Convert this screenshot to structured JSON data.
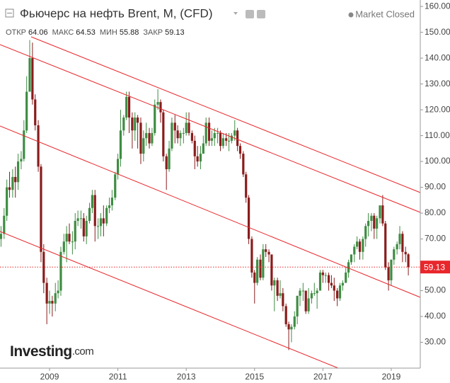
{
  "chart_data": {
    "type": "candlestick",
    "title": "Фьючерс на нефть Brent, M, (CFD)",
    "status": "Market Closed",
    "ohlc_header": [
      {
        "label": "ОТКР",
        "value": 64.06
      },
      {
        "label": "МАКС",
        "value": 64.53
      },
      {
        "label": "МИН",
        "value": 55.88
      },
      {
        "label": "ЗАКР",
        "value": 59.13
      }
    ],
    "logo": {
      "name": "Investing",
      "suffix": ".com"
    },
    "last_price": 59.13,
    "up_color": "#3f8d43",
    "down_color": "#8a1c1c",
    "line_color": "#e8262b",
    "xlim": [
      2007.55,
      2019.85
    ],
    "xticks": [
      2009,
      2011,
      2013,
      2015,
      2017,
      2019
    ],
    "ylim": [
      20,
      162.5
    ],
    "yticks": [
      {
        "value": 30,
        "label": "30.00"
      },
      {
        "value": 40,
        "label": "40.00"
      },
      {
        "value": 50,
        "label": "50.00"
      },
      {
        "value": 60,
        "label": "60.00"
      },
      {
        "value": 70,
        "label": "70.00"
      },
      {
        "value": 80,
        "label": "80.00"
      },
      {
        "value": 90,
        "label": "90.00"
      },
      {
        "value": 100,
        "label": "100.00"
      },
      {
        "value": 110,
        "label": "110.00"
      },
      {
        "value": 120,
        "label": "120.00"
      },
      {
        "value": 130,
        "label": "130.00"
      },
      {
        "value": 140,
        "label": "140.00"
      },
      {
        "value": 150,
        "label": "150.00"
      },
      {
        "value": 160,
        "label": "160.00"
      }
    ],
    "x": [
      2007.58,
      2007.67,
      2007.75,
      2007.83,
      2007.92,
      2008.0,
      2008.08,
      2008.17,
      2008.25,
      2008.33,
      2008.42,
      2008.5,
      2008.58,
      2008.67,
      2008.75,
      2008.83,
      2008.92,
      2009.0,
      2009.08,
      2009.17,
      2009.25,
      2009.33,
      2009.42,
      2009.5,
      2009.58,
      2009.67,
      2009.75,
      2009.83,
      2009.92,
      2010.0,
      2010.08,
      2010.17,
      2010.25,
      2010.33,
      2010.42,
      2010.5,
      2010.58,
      2010.67,
      2010.75,
      2010.83,
      2010.92,
      2011.0,
      2011.08,
      2011.17,
      2011.25,
      2011.33,
      2011.42,
      2011.5,
      2011.58,
      2011.67,
      2011.75,
      2011.83,
      2011.92,
      2012.0,
      2012.08,
      2012.17,
      2012.25,
      2012.33,
      2012.42,
      2012.5,
      2012.58,
      2012.67,
      2012.75,
      2012.83,
      2012.92,
      2013.0,
      2013.08,
      2013.17,
      2013.25,
      2013.33,
      2013.42,
      2013.5,
      2013.58,
      2013.67,
      2013.75,
      2013.83,
      2013.92,
      2014.0,
      2014.08,
      2014.17,
      2014.25,
      2014.33,
      2014.42,
      2014.5,
      2014.58,
      2014.67,
      2014.75,
      2014.83,
      2014.92,
      2015.0,
      2015.08,
      2015.17,
      2015.25,
      2015.33,
      2015.42,
      2015.5,
      2015.58,
      2015.67,
      2015.75,
      2015.83,
      2015.92,
      2016.0,
      2016.08,
      2016.17,
      2016.25,
      2016.33,
      2016.42,
      2016.5,
      2016.58,
      2016.67,
      2016.75,
      2016.83,
      2016.92,
      2017.0,
      2017.08,
      2017.17,
      2017.25,
      2017.33,
      2017.42,
      2017.5,
      2017.58,
      2017.67,
      2017.75,
      2017.83,
      2017.92,
      2018.0,
      2018.08,
      2018.17,
      2018.25,
      2018.33,
      2018.42,
      2018.5,
      2018.58,
      2018.67,
      2018.75,
      2018.83,
      2018.92,
      2019.0,
      2019.08,
      2019.17,
      2019.25,
      2019.33,
      2019.42,
      2019.5
    ],
    "open": [
      70,
      72,
      79,
      90,
      89,
      94,
      92,
      100,
      101,
      112,
      127,
      140,
      124,
      114,
      98,
      65,
      53,
      45,
      46,
      45,
      49,
      50,
      65,
      69,
      72,
      69,
      69,
      77,
      78,
      78,
      71,
      77,
      82,
      87,
      75,
      75,
      78,
      76,
      82,
      83,
      86,
      95,
      101,
      112,
      117,
      125,
      117,
      112,
      117,
      115,
      103,
      109,
      111,
      107,
      111,
      122,
      123,
      119,
      102,
      97,
      105,
      115,
      112,
      109,
      111,
      111,
      115,
      111,
      108,
      102,
      100,
      103,
      107,
      115,
      108,
      109,
      111,
      111,
      106,
      109,
      108,
      108,
      110,
      112,
      106,
      103,
      95,
      86,
      70,
      57,
      53,
      62,
      55,
      66,
      65,
      64,
      52,
      54,
      48,
      49,
      44,
      37,
      35,
      36,
      40,
      48,
      50,
      50,
      42,
      47,
      49,
      49,
      50,
      57,
      56,
      56,
      53,
      52,
      50,
      47,
      52,
      53,
      57,
      61,
      64,
      67,
      69,
      65,
      70,
      75,
      77,
      79,
      74,
      78,
      83,
      76,
      59,
      54,
      62,
      66,
      68,
      72,
      65,
      64.06
    ],
    "high": [
      75,
      82,
      93,
      96,
      97,
      98,
      103,
      104,
      116,
      133,
      147,
      146,
      126,
      116,
      99,
      68,
      55,
      50,
      48,
      53,
      54,
      67,
      72,
      75,
      76,
      73,
      80,
      81,
      81,
      80,
      79,
      84,
      89,
      89,
      78,
      80,
      83,
      83,
      86,
      89,
      96,
      103,
      120,
      118,
      127,
      127,
      119,
      119,
      118,
      117,
      112,
      115,
      113,
      113,
      124,
      128,
      124,
      120,
      103,
      108,
      117,
      118,
      114,
      112,
      113,
      119,
      119,
      112,
      110,
      106,
      106,
      110,
      117,
      117,
      112,
      113,
      113,
      112,
      111,
      111,
      111,
      111,
      116,
      113,
      107,
      104,
      96,
      87,
      71,
      58,
      63,
      64,
      68,
      68,
      66,
      64,
      55,
      55,
      54,
      51,
      45,
      38,
      37,
      42,
      48,
      51,
      53,
      50,
      51,
      50,
      53,
      51,
      58,
      58,
      57,
      57,
      56,
      55,
      51,
      53,
      54,
      59,
      62,
      64,
      68,
      71,
      70,
      71,
      76,
      80,
      80,
      80,
      79,
      83,
      87,
      77,
      61,
      62,
      67,
      69,
      75,
      73,
      67,
      64.53
    ],
    "low": [
      67,
      70,
      77,
      86,
      86,
      86,
      89,
      97,
      100,
      111,
      127,
      122,
      112,
      96,
      61,
      49,
      37,
      41,
      40,
      42,
      47,
      48,
      64,
      61,
      68,
      64,
      66,
      75,
      74,
      69,
      68,
      76,
      80,
      69,
      70,
      71,
      71,
      75,
      80,
      81,
      85,
      93,
      98,
      110,
      116,
      111,
      105,
      108,
      105,
      99,
      100,
      106,
      105,
      106,
      110,
      120,
      115,
      100,
      89,
      96,
      104,
      107,
      107,
      106,
      107,
      110,
      110,
      107,
      97,
      98,
      97,
      103,
      106,
      106,
      106,
      106,
      107,
      104,
      105,
      106,
      104,
      107,
      108,
      104,
      101,
      94,
      84,
      68,
      55,
      45,
      52,
      54,
      54,
      63,
      61,
      50,
      42,
      46,
      47,
      42,
      36,
      27,
      30,
      35,
      37,
      44,
      46,
      41,
      41,
      45,
      48,
      43,
      50,
      53,
      53,
      50,
      51,
      46,
      44,
      46,
      50,
      53,
      55,
      60,
      61,
      66,
      62,
      62,
      67,
      71,
      73,
      70,
      70,
      76,
      75,
      58,
      50,
      52,
      60,
      64,
      66,
      61,
      61,
      55.88
    ],
    "close": [
      72,
      79,
      90,
      89,
      94,
      92,
      100,
      101,
      112,
      127,
      140,
      124,
      114,
      98,
      65,
      53,
      45,
      46,
      45,
      49,
      50,
      65,
      69,
      72,
      69,
      69,
      77,
      78,
      78,
      71,
      77,
      82,
      87,
      75,
      75,
      78,
      76,
      82,
      83,
      86,
      95,
      101,
      112,
      117,
      125,
      117,
      112,
      117,
      115,
      103,
      109,
      111,
      107,
      111,
      122,
      123,
      119,
      102,
      97,
      105,
      115,
      112,
      109,
      111,
      111,
      115,
      111,
      108,
      102,
      100,
      103,
      107,
      115,
      108,
      109,
      111,
      111,
      106,
      109,
      108,
      108,
      110,
      112,
      106,
      103,
      95,
      86,
      70,
      57,
      53,
      62,
      55,
      66,
      65,
      64,
      52,
      54,
      48,
      49,
      44,
      37,
      35,
      36,
      40,
      48,
      50,
      50,
      42,
      47,
      49,
      49,
      50,
      57,
      56,
      56,
      53,
      52,
      50,
      47,
      52,
      53,
      57,
      61,
      64,
      67,
      69,
      65,
      70,
      75,
      77,
      79,
      74,
      78,
      83,
      76,
      59,
      54,
      62,
      66,
      68,
      72,
      65,
      64.06,
      59.13
    ]
  }
}
